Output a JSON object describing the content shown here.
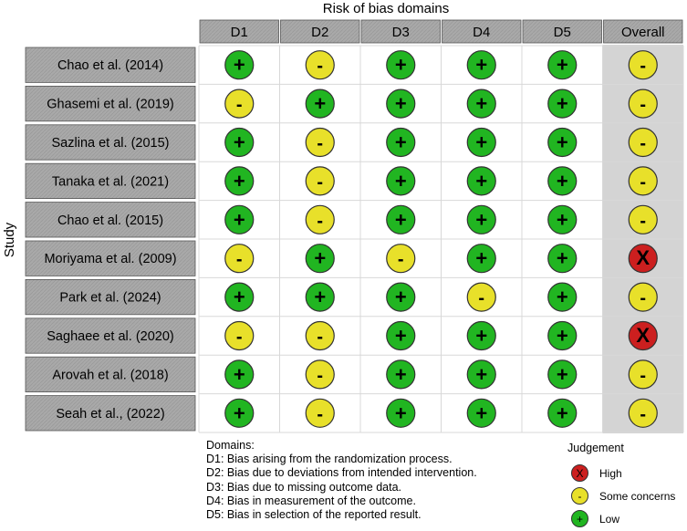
{
  "chart_data": {
    "type": "table",
    "title": "Risk of bias domains",
    "ylabel": "Study",
    "columns": [
      "D1",
      "D2",
      "D3",
      "D4",
      "D5",
      "Overall"
    ],
    "studies": [
      "Chao et al. (2014)",
      "Ghasemi et al. (2019)",
      "Sazlina et al. (2015)",
      "Tanaka et al. (2021)",
      "Chao et al. (2015)",
      "Moriyama et al. (2009)",
      "Park et al. (2024)",
      "Saghaee et al. (2020)",
      "Arovah et al. (2018)",
      "Seah et al., (2022)"
    ],
    "judgements": [
      [
        "Low",
        "Some concerns",
        "Low",
        "Low",
        "Low",
        "Some concerns"
      ],
      [
        "Some concerns",
        "Low",
        "Low",
        "Low",
        "Low",
        "Some concerns"
      ],
      [
        "Low",
        "Some concerns",
        "Low",
        "Low",
        "Low",
        "Some concerns"
      ],
      [
        "Low",
        "Some concerns",
        "Low",
        "Low",
        "Low",
        "Some concerns"
      ],
      [
        "Low",
        "Some concerns",
        "Low",
        "Low",
        "Low",
        "Some concerns"
      ],
      [
        "Some concerns",
        "Low",
        "Some concerns",
        "Low",
        "Low",
        "High"
      ],
      [
        "Low",
        "Low",
        "Low",
        "Some concerns",
        "Low",
        "Some concerns"
      ],
      [
        "Some concerns",
        "Some concerns",
        "Low",
        "Low",
        "Low",
        "High"
      ],
      [
        "Low",
        "Some concerns",
        "Low",
        "Low",
        "Low",
        "Some concerns"
      ],
      [
        "Low",
        "Some concerns",
        "Low",
        "Low",
        "Low",
        "Some concerns"
      ]
    ],
    "symbols": {
      "High": "X",
      "Some concerns": "-",
      "Low": "+"
    },
    "colors": {
      "High": "#cc1f1f",
      "Some concerns": "#e8e02a",
      "Low": "#21b521",
      "header_bg": "#a9a9a9",
      "study_bg": "#a9a9a9",
      "overall_bg": "#d4d4d4"
    }
  },
  "legend": {
    "domains_title": "Domains:",
    "domains": [
      "D1: Bias arising from the randomization process.",
      "D2: Bias due to deviations from intended intervention.",
      "D3: Bias due to missing outcome data.",
      "D4: Bias in measurement of the outcome.",
      "D5: Bias in selection of the reported result."
    ],
    "judgement_title": "Judgement",
    "judgements": [
      {
        "label": "High",
        "symbol": "X",
        "level": "High"
      },
      {
        "label": "Some concerns",
        "symbol": "-",
        "level": "Some concerns"
      },
      {
        "label": "Low",
        "symbol": "+",
        "level": "Low"
      }
    ]
  }
}
